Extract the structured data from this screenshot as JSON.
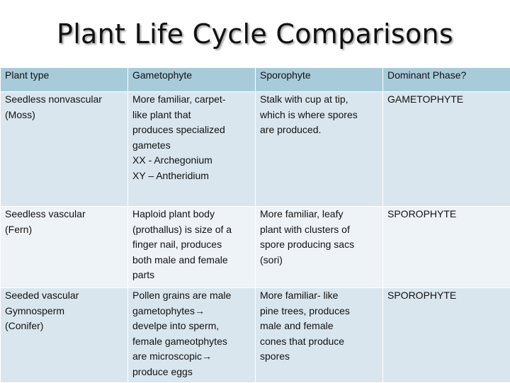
{
  "title": "Plant Life Cycle Comparisons",
  "headers": [
    "Plant type",
    "Gametophyte",
    "Sporophyte",
    "Dominant Phase?"
  ],
  "rows": [
    {
      "plant_type": [
        "Seedless nonvascular",
        "(Moss)"
      ],
      "gametophyte": [
        "More familiar, carpet-",
        "like plant that",
        "produces specialized",
        "gametes",
        "XX - Archegonium",
        "XY – Antheridium"
      ],
      "sporophyte": [
        "Stalk with cup at tip,",
        "which is where spores",
        "are produced."
      ],
      "dominant": [
        "GAMETOPHYTE"
      ]
    },
    {
      "plant_type": [
        "Seedless vascular",
        "(Fern)"
      ],
      "gametophyte": [
        "Haploid plant body",
        "(prothallus) is size of a",
        "finger nail,  produces",
        "both male and female",
        "parts"
      ],
      "sporophyte": [
        "More familiar, leafy",
        "plant with clusters of",
        "spore producing sacs",
        "(sori)"
      ],
      "dominant": [
        "SPOROPHYTE"
      ]
    },
    {
      "plant_type": [
        "Seeded vascular",
        "Gymnosperm",
        "(Conifer)"
      ],
      "gametophyte": [
        "Pollen grains are male",
        "gametophytes→",
        "develpe into sperm,",
        "female gameotphytes",
        "are microscopic→",
        "produce  eggs"
      ],
      "sporophyte": [
        "More familiar- like",
        "pine trees, produces",
        "male and female",
        "cones that produce",
        "spores"
      ],
      "dominant": [
        "SPOROPHYTE"
      ]
    }
  ],
  "colors": {
    "header_bg": "#a8cbd9",
    "row_bg": "#d9e6ee",
    "row_alt_bg": "#eef3f7"
  }
}
